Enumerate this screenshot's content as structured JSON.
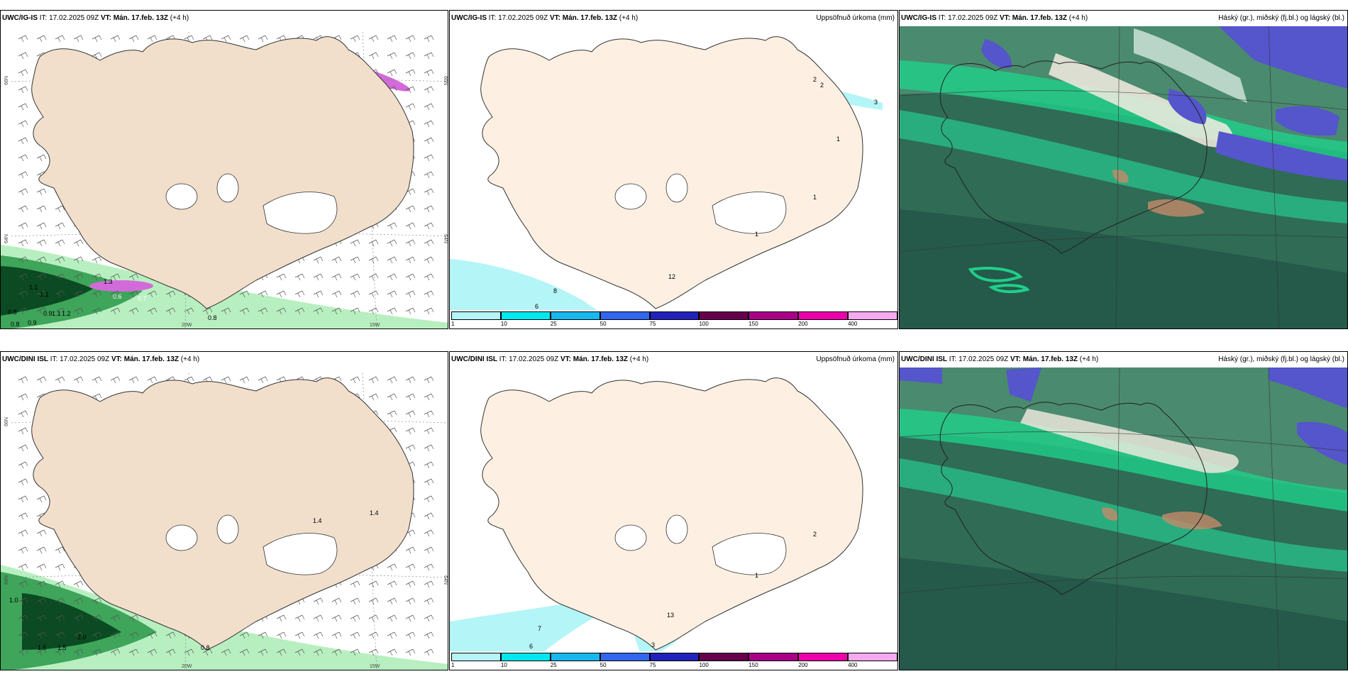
{
  "panels": [
    {
      "key": "igis_wind",
      "model": "UWC/IG-IS",
      "it_label": "IT:",
      "it": "17.02.2025 09Z",
      "vt_label": "VT:",
      "vt": "Mán. 17.feb. 13Z",
      "lead": "(+4 h)",
      "right_title": ""
    },
    {
      "key": "igis_precip",
      "model": "UWC/IG-IS",
      "it_label": "IT:",
      "it": "17.02.2025 09Z",
      "vt_label": "VT:",
      "vt": "Mán. 17.feb. 13Z",
      "lead": "(+4 h)",
      "right_title": "Uppsöfnuð úrkoma (mm)"
    },
    {
      "key": "igis_cloud",
      "model": "UWC/IG-IS",
      "it_label": "IT:",
      "it": "17.02.2025 09Z",
      "vt_label": "VT:",
      "vt": "Mán. 17.feb. 13Z",
      "lead": "(+4 h)",
      "right_title": "Háský (gr.), miðský (fj.bl.) og lágský (bl.)"
    },
    {
      "key": "dini_wind",
      "model": "UWC/DINI ISL",
      "it_label": "IT:",
      "it": "17.02.2025 09Z",
      "vt_label": "VT:",
      "vt": "Mán. 17.feb. 13Z",
      "lead": "(+4 h)",
      "right_title": ""
    },
    {
      "key": "dini_precip",
      "model": "UWC/DINI ISL",
      "it_label": "IT:",
      "it": "17.02.2025 09Z",
      "vt_label": "VT:",
      "vt": "Mán. 17.feb. 13Z",
      "lead": "(+4 h)",
      "right_title": "Uppsöfnuð úrkoma (mm)"
    },
    {
      "key": "dini_cloud",
      "model": "UWC/DINI ISL",
      "it_label": "IT:",
      "it": "17.02.2025 09Z",
      "vt_label": "VT:",
      "vt": "Mán. 17.feb. 13Z",
      "lead": "(+4 h)",
      "right_title": "Háský (gr.), miðský (fj.bl.) og lágský (bl.)"
    }
  ],
  "axis_labels": {
    "lat66": "66N",
    "lat64": "64N",
    "lon20": "20W",
    "lon15": "15W"
  },
  "wind_values_top": [
    "0.8",
    "0.9",
    "1.1",
    "1.3",
    "1.1",
    "0.8",
    "0.6",
    "0.7",
    "0.9",
    "1.1",
    "1.2",
    "0.8"
  ],
  "wind_values_bottom": [
    "1.0",
    "1.5",
    "2.0",
    "1.4",
    "1.4",
    "1.5",
    "0.8"
  ],
  "precip_values_top": [
    "2",
    "2",
    "3",
    "1",
    "1",
    "1",
    "8",
    "6",
    "12"
  ],
  "precip_values_bottom": [
    "2",
    "1",
    "7",
    "6",
    "3",
    "13"
  ],
  "colorbar": {
    "ticks": [
      "1",
      "10",
      "25",
      "50",
      "75",
      "100",
      "150",
      "200",
      "400"
    ],
    "colors": [
      "#b4f5f7",
      "#00e8ef",
      "#16b8ee",
      "#3366ee",
      "#2222bb",
      "#66004c",
      "#aa0088",
      "#ee00aa",
      "#f5aaf0"
    ]
  },
  "colors": {
    "land": "#f6e8d8",
    "land_precip": "#fdf0e2",
    "precip_light": "#b4f5f7",
    "wind_green_dark": "#0b4a22",
    "wind_green_mid": "#3ea55a",
    "wind_green_light": "#b8efc0",
    "gust_magenta": "#d36ad9",
    "cloud_bg": "#2f6b55",
    "cloud_green": "#1fcf8a",
    "cloud_blue": "#5555cc"
  }
}
